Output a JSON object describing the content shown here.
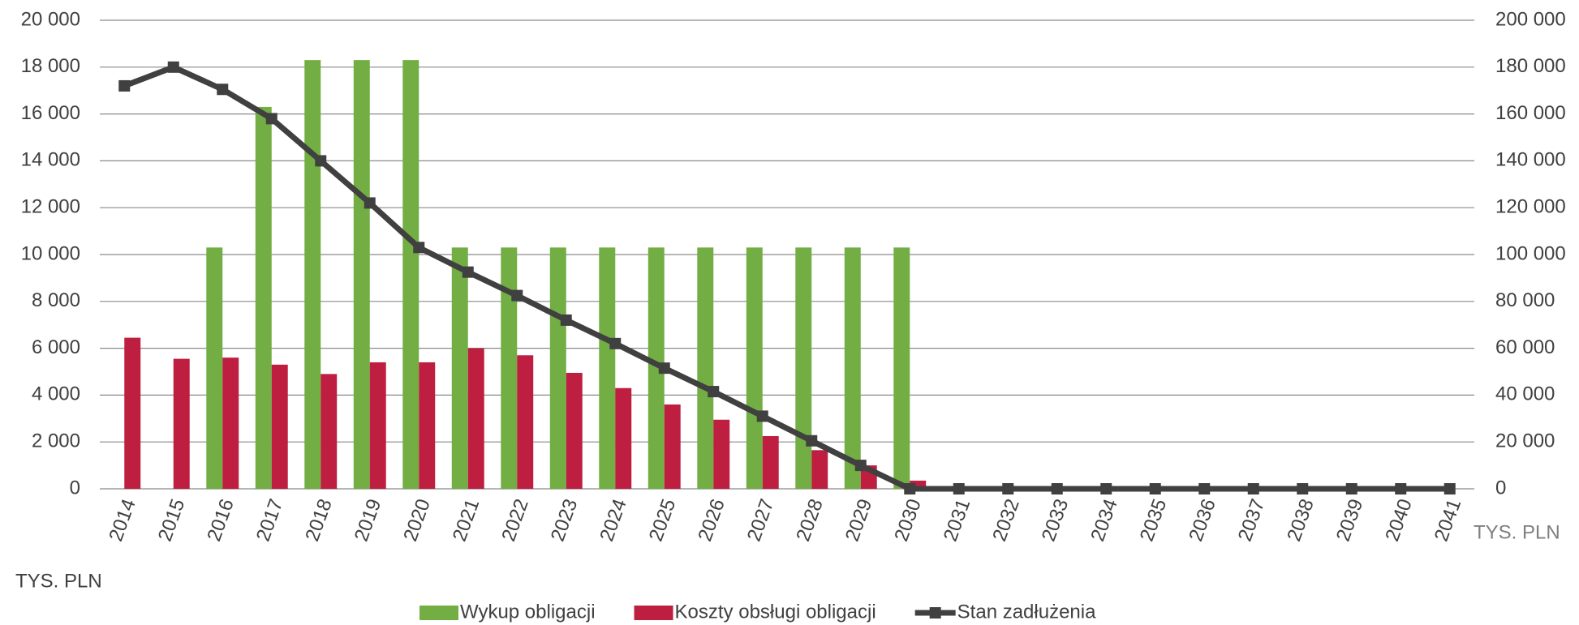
{
  "chart_data": {
    "type": "bar",
    "categories": [
      "2014",
      "2015",
      "2016",
      "2017",
      "2018",
      "2019",
      "2020",
      "2021",
      "2022",
      "2023",
      "2024",
      "2025",
      "2026",
      "2027",
      "2028",
      "2029",
      "2030",
      "2031",
      "2032",
      "2033",
      "2034",
      "2035",
      "2036",
      "2037",
      "2038",
      "2039",
      "2040",
      "2041"
    ],
    "series": [
      {
        "name": "Wykup obligacji",
        "color": "#72ae44",
        "type": "bar",
        "values": [
          0,
          0,
          10300,
          16300,
          18300,
          18300,
          18300,
          10300,
          10300,
          10300,
          10300,
          10300,
          10300,
          10300,
          10300,
          10300,
          10300,
          0,
          0,
          0,
          0,
          0,
          0,
          0,
          0,
          0,
          0,
          0
        ]
      },
      {
        "name": "Koszty obsługi obligacji",
        "color": "#be1e3f",
        "type": "bar",
        "values": [
          6450,
          5550,
          5600,
          5300,
          4900,
          5400,
          5400,
          6000,
          5700,
          4950,
          4300,
          3600,
          2950,
          2250,
          1650,
          1000,
          350,
          0,
          0,
          0,
          0,
          0,
          0,
          0,
          0,
          0,
          0,
          0
        ]
      },
      {
        "name": "Stan zadłużenia",
        "color": "#404040",
        "type": "line",
        "axis": "y2",
        "values": [
          172000,
          180000,
          170500,
          158000,
          140000,
          122000,
          103000,
          92500,
          82500,
          72000,
          62000,
          51500,
          41500,
          31000,
          20500,
          10000,
          0,
          0,
          0,
          0,
          0,
          0,
          0,
          0,
          0,
          0,
          0,
          0
        ]
      }
    ],
    "ylabel": "TYS. PLN",
    "y2label": "TYS. PLN",
    "ylim": [
      0,
      20000
    ],
    "yticks": [
      0,
      {
        "value": 2000,
        "label": "2 000"
      },
      {
        "value": 4000,
        "label": "4 000"
      },
      {
        "value": 6000,
        "label": "6 000"
      },
      {
        "value": 8000,
        "label": "8 000"
      },
      {
        "value": 10000,
        "label": "10 000"
      },
      {
        "value": 12000,
        "label": "12 000"
      },
      {
        "value": 14000,
        "label": "14 000"
      },
      {
        "value": 16000,
        "label": "16 000"
      },
      {
        "value": 18000,
        "label": "18 000"
      },
      {
        "value": 20000,
        "label": "20 000"
      }
    ],
    "y2lim": [
      0,
      200000
    ],
    "y2ticks": [
      0,
      {
        "value": 20000,
        "label": "20 000"
      },
      {
        "value": 40000,
        "label": "40 000"
      },
      {
        "value": 60000,
        "label": "60 000"
      },
      {
        "value": 80000,
        "label": "80 000"
      },
      {
        "value": 100000,
        "label": "100 000"
      },
      {
        "value": 120000,
        "label": "120 000"
      },
      {
        "value": 140000,
        "label": "140 000"
      },
      {
        "value": 160000,
        "label": "160 000"
      },
      {
        "value": 180000,
        "label": "180 000"
      },
      {
        "value": 200000,
        "label": "200 000"
      }
    ],
    "grid": true,
    "legend": "bottom"
  }
}
